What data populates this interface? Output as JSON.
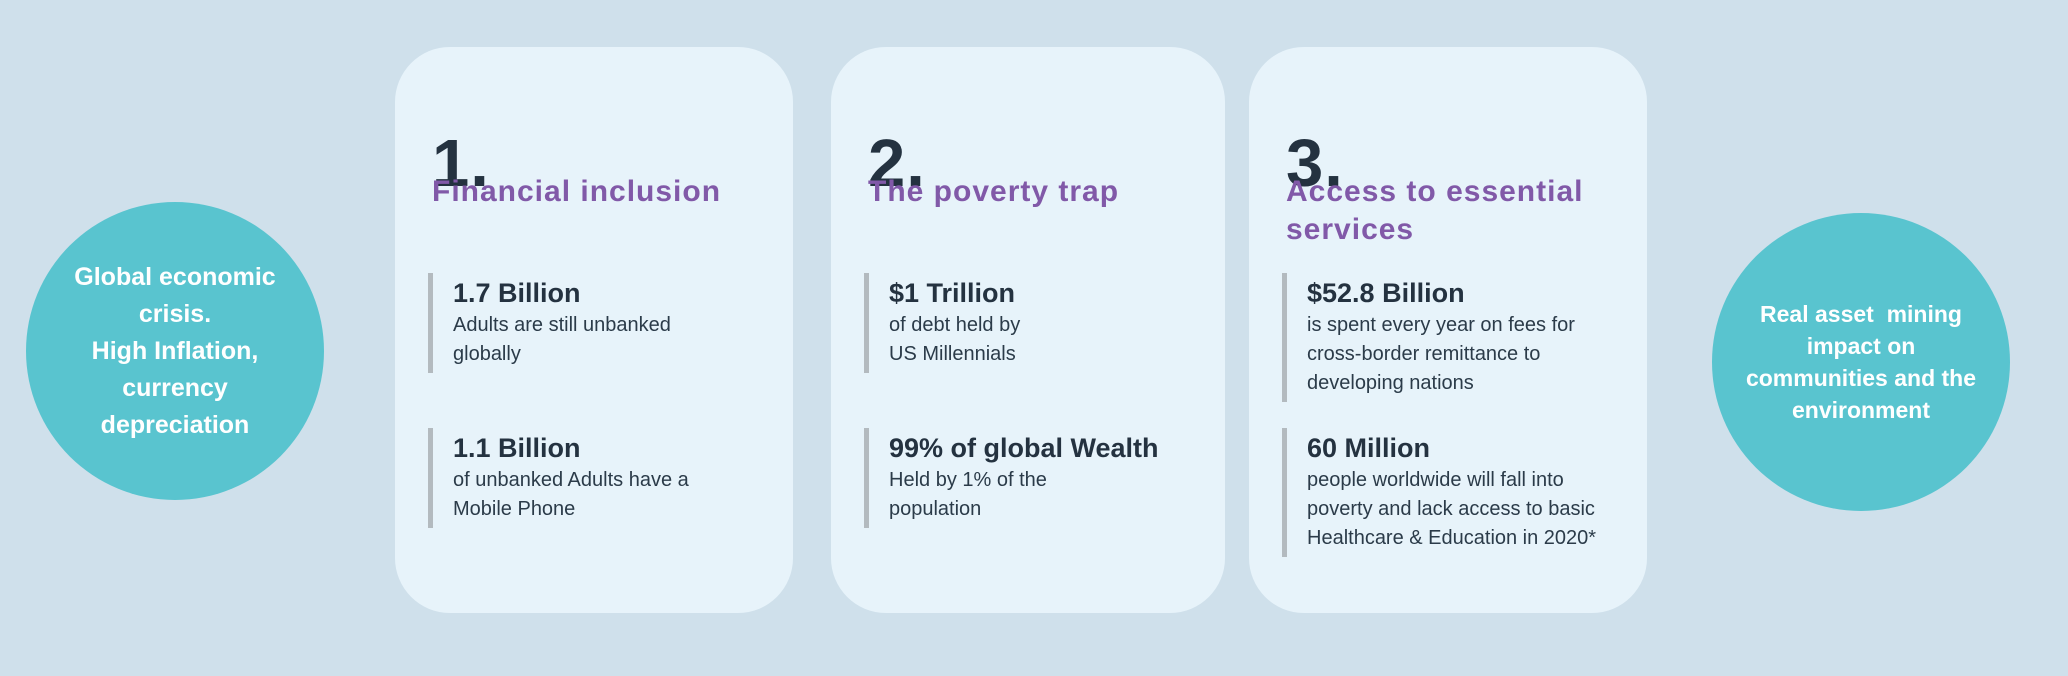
{
  "colors": {
    "background": "#cfe0eb",
    "card_background": "#e7f3fa",
    "circle_teal": "#59c4cf",
    "heading_purple": "#8159a8",
    "text_dark": "#243240",
    "stat_bar_gray": "#b3babf",
    "circle_text": "#ffffff"
  },
  "circles": {
    "left": {
      "lines": [
        "Global economic",
        "crisis.",
        "High Inflation,",
        "currency",
        "depreciation"
      ]
    },
    "right": {
      "lines": [
        "Real asset  mining",
        "impact on",
        "communities and the",
        "environment"
      ]
    }
  },
  "cards": [
    {
      "number": "1.",
      "title": "Financial inclusion",
      "stats": [
        {
          "value": "1.7 Billion",
          "desc": "Adults are still unbanked\nglobally"
        },
        {
          "value": "1.1 Billion",
          "desc": "of unbanked Adults have a\nMobile Phone"
        }
      ]
    },
    {
      "number": "2.",
      "title": "The poverty trap",
      "stats": [
        {
          "value": "$1 Trillion",
          "desc": "of debt held by\nUS Millennials"
        },
        {
          "value": "99% of global Wealth",
          "desc": "Held by 1% of the\npopulation"
        }
      ]
    },
    {
      "number": "3.",
      "title": "Access to essential\nservices",
      "stats": [
        {
          "value": "$52.8 Billion",
          "desc": "is spent every year on fees for\ncross-border remittance to\ndeveloping nations"
        },
        {
          "value": "60 Million",
          "desc": "people worldwide will fall into\npoverty and lack access to basic\nHealthcare & Education in 2020*"
        }
      ]
    }
  ]
}
